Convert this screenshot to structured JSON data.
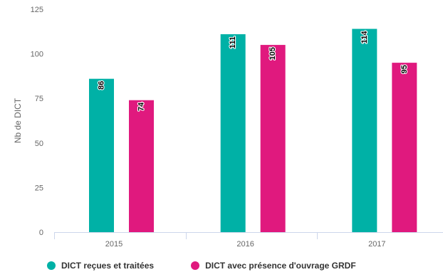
{
  "chart_data": {
    "type": "bar",
    "title": "",
    "xlabel": "",
    "ylabel": "Nb de DICT",
    "categories": [
      "2015",
      "2016",
      "2017"
    ],
    "series": [
      {
        "name": "DICT reçues et traitées",
        "values": [
          86,
          111,
          114
        ],
        "color": "#00b1a6"
      },
      {
        "name": "DICT avec présence d'ouvrage GRDF",
        "values": [
          74,
          105,
          95
        ],
        "color": "#e0197e"
      }
    ],
    "ylim": [
      0,
      125
    ],
    "yticks": [
      0,
      25,
      50,
      75,
      100,
      125
    ],
    "grid": false,
    "legend_position": "bottom-left",
    "data_labels": "inside-top-rotated"
  }
}
